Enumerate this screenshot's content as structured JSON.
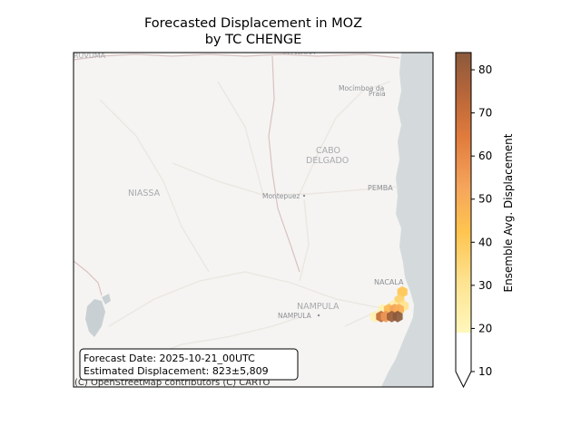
{
  "figure": {
    "title_line1": "Forecasted Displacement in MOZ",
    "title_line2": "by TC CHENGE"
  },
  "map": {
    "attribution": "(C) OpenStreetMap contributors (C) CARTO",
    "labels": {
      "rovuma": "RUVUMA",
      "mtwara": "MTWARA",
      "mocimboa_line1": "Mocímboa da",
      "mocimboa_line2": "Praia",
      "cabo_line1": "CABO",
      "cabo_line2": "DELGADO",
      "niassa": "NIASSA",
      "montepuez": "Montepuez",
      "pemba": "PEMBA",
      "nacala": "NACALA",
      "nampula_region": "NAMPULA",
      "nampula_city": "NAMPULA"
    },
    "colors": {
      "land": "#f5f4f2",
      "ocean": "#d4dadc",
      "road": "#ebe6e1",
      "border": "#d9c2c2",
      "lake": "#c9d0d3"
    }
  },
  "info_box": {
    "forecast_date": "Forecast Date: 2025-10-21_00UTC",
    "estimated_displacement": "Estimated Displacement: 823±5,809"
  },
  "colorbar": {
    "label": "Ensemble Avg. Displacement",
    "ticks": [
      "10",
      "20",
      "30",
      "40",
      "50",
      "60",
      "70",
      "80"
    ],
    "min": 10,
    "max": 84,
    "threshold": 19,
    "colors": [
      "#fff7bc",
      "#fee391",
      "#fec44f",
      "#f5a55c",
      "#e07b3c",
      "#b5653a",
      "#8b5a3c"
    ]
  },
  "hexbins": [
    {
      "lon": 40.78,
      "lat": -14.48,
      "value": 40
    },
    {
      "lon": 40.73,
      "lat": -14.62,
      "value": 36
    },
    {
      "lon": 40.62,
      "lat": -14.72,
      "value": 24
    },
    {
      "lon": 40.8,
      "lat": -14.72,
      "value": 30
    },
    {
      "lon": 40.45,
      "lat": -14.78,
      "value": 22
    },
    {
      "lon": 40.55,
      "lat": -14.78,
      "value": 45
    },
    {
      "lon": 40.65,
      "lat": -14.78,
      "value": 52
    },
    {
      "lon": 40.72,
      "lat": -14.78,
      "value": 48
    },
    {
      "lon": 40.32,
      "lat": -14.9,
      "value": 23
    },
    {
      "lon": 40.42,
      "lat": -14.9,
      "value": 70
    },
    {
      "lon": 40.5,
      "lat": -14.9,
      "value": 55
    },
    {
      "lon": 40.6,
      "lat": -14.9,
      "value": 80
    },
    {
      "lon": 40.7,
      "lat": -14.9,
      "value": 84
    }
  ]
}
